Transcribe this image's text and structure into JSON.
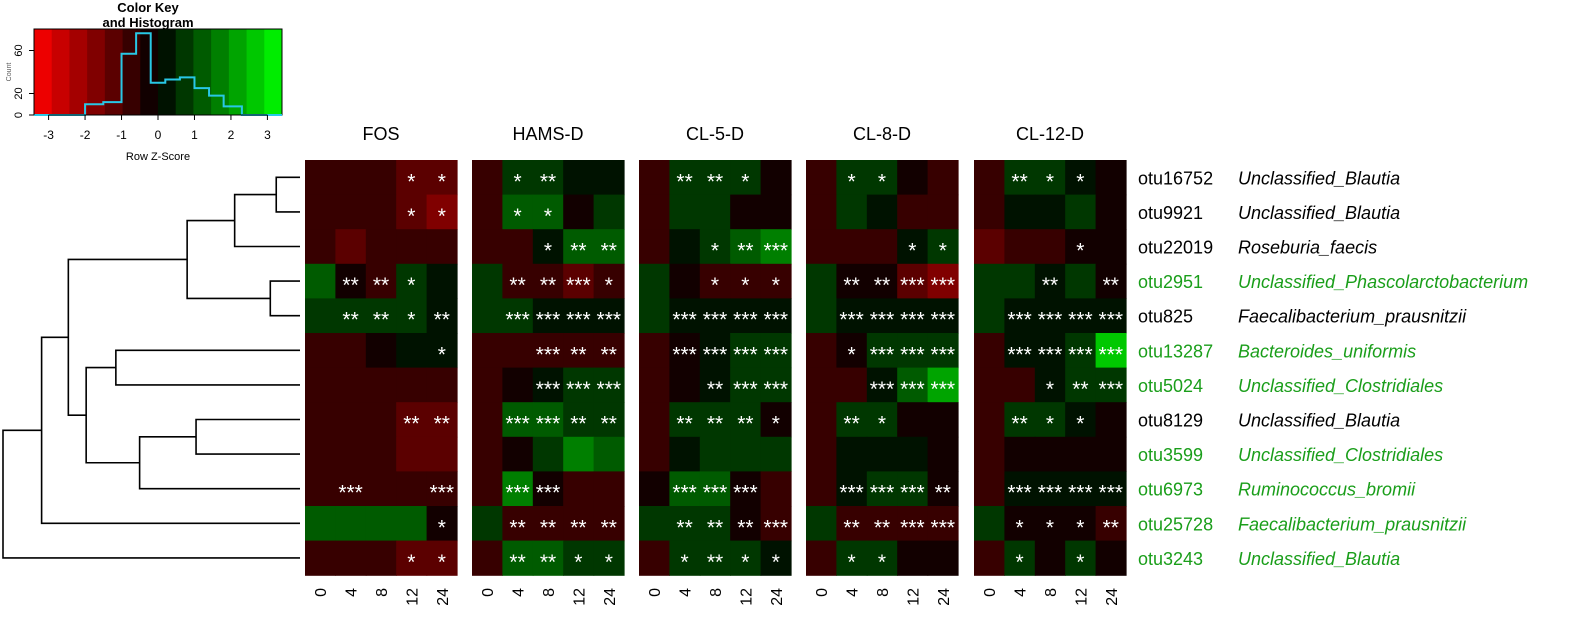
{
  "chart_data": {
    "type": "heatmap",
    "color_key": {
      "title_line1": "Color Key",
      "title_line2": "and Histogram",
      "xlabel": "Row Z-Score",
      "ylabel": "Count",
      "x_ticks": [
        "-3",
        "-2",
        "-1",
        "0",
        "1",
        "2",
        "3"
      ],
      "y_ticks": [
        "0",
        "20",
        "60"
      ],
      "xlim": [
        -3.4,
        3.4
      ],
      "ylim": [
        0,
        80
      ],
      "histogram": [
        {
          "x0": -3.4,
          "x1": -2.0,
          "count": 0
        },
        {
          "x0": -2.0,
          "x1": -1.5,
          "count": 10
        },
        {
          "x0": -1.5,
          "x1": -1.0,
          "count": 12
        },
        {
          "x0": -1.0,
          "x1": -0.6,
          "count": 57
        },
        {
          "x0": -0.6,
          "x1": -0.2,
          "count": 76
        },
        {
          "x0": -0.2,
          "x1": 0.2,
          "count": 30
        },
        {
          "x0": 0.2,
          "x1": 0.6,
          "count": 33
        },
        {
          "x0": 0.6,
          "x1": 1.0,
          "count": 35
        },
        {
          "x0": 1.0,
          "x1": 1.4,
          "count": 25
        },
        {
          "x0": 1.4,
          "x1": 1.8,
          "count": 18
        },
        {
          "x0": 1.8,
          "x1": 2.3,
          "count": 8
        },
        {
          "x0": 2.3,
          "x1": 3.4,
          "count": 0
        }
      ],
      "colors": {
        "low": "#ff0000",
        "mid": "#000000",
        "high": "#00ff00",
        "histogram": "#28c8e6"
      }
    },
    "panels": [
      "FOS",
      "HAMS-D",
      "CL-5-D",
      "CL-8-D",
      "CL-12-D"
    ],
    "timepoints": [
      "0",
      "4",
      "8",
      "12",
      "24"
    ],
    "rows": [
      {
        "otu": "otu16752",
        "taxon": "Unclassified_Blautia",
        "color": "#000000"
      },
      {
        "otu": "otu9921",
        "taxon": "Unclassified_Blautia",
        "color": "#000000"
      },
      {
        "otu": "otu22019",
        "taxon": "Roseburia_faecis",
        "color": "#000000"
      },
      {
        "otu": "otu2951",
        "taxon": "Unclassified_Phascolarctobacterium",
        "color": "#1a9e1a"
      },
      {
        "otu": "otu825",
        "taxon": "Faecalibacterium_prausnitzii",
        "color": "#000000"
      },
      {
        "otu": "otu13287",
        "taxon": "Bacteroides_uniformis",
        "color": "#1a9e1a"
      },
      {
        "otu": "otu5024",
        "taxon": "Unclassified_Clostridiales",
        "color": "#1a9e1a"
      },
      {
        "otu": "otu8129",
        "taxon": "Unclassified_Blautia",
        "color": "#000000"
      },
      {
        "otu": "otu3599",
        "taxon": "Unclassified_Clostridiales",
        "color": "#1a9e1a"
      },
      {
        "otu": "otu6973",
        "taxon": "Ruminococcus_bromii",
        "color": "#1a9e1a"
      },
      {
        "otu": "otu25728",
        "taxon": "Faecalibacterium_prausnitzii",
        "color": "#1a9e1a"
      },
      {
        "otu": "otu3243",
        "taxon": "Unclassified_Blautia",
        "color": "#1a9e1a"
      }
    ],
    "z_scores": {
      "FOS": [
        [
          -0.8,
          -0.9,
          -0.7,
          -1.2,
          -1.4
        ],
        [
          -0.9,
          -0.8,
          -0.8,
          -1.3,
          -1.6
        ],
        [
          -0.6,
          -1.1,
          -0.7,
          -0.7,
          -0.7
        ],
        [
          1.0,
          -0.1,
          -0.5,
          0.5,
          0.4
        ],
        [
          0.8,
          0.6,
          0.7,
          0.7,
          0.0
        ],
        [
          -0.8,
          -0.5,
          -0.1,
          0.3,
          0.4
        ],
        [
          -0.7,
          -0.7,
          -0.7,
          -0.7,
          -0.7
        ],
        [
          -0.7,
          -0.8,
          -0.8,
          -1.1,
          -1.3
        ],
        [
          -0.7,
          -0.8,
          -0.8,
          -1.0,
          -1.2
        ],
        [
          -0.6,
          -0.6,
          -0.6,
          -0.6,
          -0.8
        ],
        [
          1.2,
          1.2,
          1.2,
          1.0,
          -0.2
        ],
        [
          -0.8,
          -0.8,
          -0.8,
          -1.2,
          -1.4
        ]
      ],
      "HAMS-D": [
        [
          -0.7,
          0.8,
          0.7,
          0.3,
          0.3
        ],
        [
          -0.6,
          1.0,
          1.0,
          -0.1,
          0.5
        ],
        [
          -0.8,
          -0.5,
          0.4,
          1.0,
          1.3
        ],
        [
          0.5,
          -0.5,
          -0.6,
          -1.3,
          -0.8
        ],
        [
          0.6,
          0.5,
          0.4,
          0.4,
          0.4
        ],
        [
          -0.7,
          -0.7,
          -0.5,
          -0.5,
          -0.5
        ],
        [
          -0.6,
          -0.4,
          0.4,
          0.6,
          0.6
        ],
        [
          -0.6,
          1.0,
          1.3,
          0.8,
          0.8
        ],
        [
          -0.7,
          -0.1,
          0.6,
          1.6,
          1.2
        ],
        [
          -0.5,
          1.6,
          -0.2,
          -0.6,
          -0.5
        ],
        [
          0.7,
          -0.6,
          -0.6,
          -0.6,
          -0.6
        ],
        [
          -0.7,
          1.1,
          1.1,
          0.6,
          0.5
        ]
      ],
      "CL-5-D": [
        [
          -0.8,
          0.6,
          0.6,
          0.5,
          -0.2
        ],
        [
          -0.7,
          0.6,
          0.6,
          -0.1,
          -0.1
        ],
        [
          -0.7,
          0.3,
          0.9,
          1.2,
          1.9
        ],
        [
          0.8,
          -0.2,
          -0.6,
          -0.6,
          -0.7
        ],
        [
          0.5,
          0.4,
          0.4,
          0.4,
          0.4
        ],
        [
          -0.6,
          -0.4,
          0.3,
          0.5,
          0.5
        ],
        [
          -0.7,
          -0.3,
          0.2,
          0.8,
          0.9
        ],
        [
          -0.6,
          0.6,
          0.5,
          0.5,
          -0.1
        ],
        [
          -0.6,
          0.0,
          0.8,
          0.8,
          0.7
        ],
        [
          -0.4,
          1.3,
          1.4,
          -0.1,
          -0.5
        ],
        [
          0.8,
          0.6,
          0.6,
          -0.3,
          -0.8
        ],
        [
          -0.7,
          0.7,
          0.7,
          0.5,
          0.3
        ]
      ],
      "CL-8-D": [
        [
          -0.6,
          0.7,
          0.5,
          -0.4,
          -0.5
        ],
        [
          -0.6,
          0.5,
          0.4,
          -0.5,
          -0.5
        ],
        [
          -0.8,
          -0.6,
          -0.6,
          0.4,
          0.5
        ],
        [
          0.7,
          -0.1,
          -0.4,
          -1.1,
          -1.5
        ],
        [
          0.6,
          0.4,
          0.4,
          0.4,
          0.4
        ],
        [
          -0.6,
          -0.4,
          0.5,
          0.5,
          0.6
        ],
        [
          -0.6,
          -0.6,
          0.2,
          1.3,
          2.2
        ],
        [
          -0.6,
          0.8,
          0.5,
          -0.1,
          -0.3
        ],
        [
          -0.6,
          0.3,
          0.3,
          0.3,
          -0.3
        ],
        [
          -0.5,
          0.4,
          0.6,
          0.6,
          -0.4
        ],
        [
          0.8,
          -0.6,
          -0.6,
          -0.8,
          -0.9
        ],
        [
          -0.6,
          0.7,
          0.5,
          -0.1,
          -0.3
        ]
      ],
      "CL-12-D": [
        [
          -0.6,
          0.7,
          0.5,
          0.4,
          -0.2
        ],
        [
          -0.6,
          0.4,
          0.3,
          0.7,
          -0.3
        ],
        [
          -1.0,
          -0.7,
          -0.7,
          -0.1,
          -0.1
        ],
        [
          0.7,
          0.6,
          0.3,
          0.7,
          -0.2
        ],
        [
          0.6,
          0.4,
          0.4,
          0.4,
          0.4
        ],
        [
          -0.6,
          0.4,
          0.4,
          0.7,
          2.6
        ],
        [
          -0.6,
          -0.5,
          0.3,
          0.5,
          0.9
        ],
        [
          -0.5,
          0.5,
          0.5,
          0.3,
          -0.3
        ],
        [
          -0.5,
          -0.2,
          -0.1,
          -0.3,
          -0.3
        ],
        [
          -0.5,
          0.2,
          0.3,
          0.3,
          0.4
        ],
        [
          0.9,
          -0.1,
          -0.1,
          -0.4,
          -0.6
        ],
        [
          -0.6,
          0.6,
          -0.1,
          0.5,
          -0.3
        ]
      ]
    },
    "annotations": {
      "FOS": [
        [
          "",
          "",
          "",
          "*",
          "*"
        ],
        [
          "",
          "",
          "",
          "*",
          "*"
        ],
        [
          "",
          "",
          "",
          "",
          ""
        ],
        [
          "",
          "**",
          "**",
          "*",
          ""
        ],
        [
          "",
          "**",
          "**",
          "*",
          "**"
        ],
        [
          "",
          "",
          "",
          "",
          "*"
        ],
        [
          "",
          "",
          "",
          "",
          ""
        ],
        [
          "",
          "",
          "",
          "**",
          "**"
        ],
        [
          "",
          "",
          "",
          "",
          ""
        ],
        [
          "",
          "***",
          "",
          "",
          "***"
        ],
        [
          "",
          "",
          "",
          "",
          "*"
        ],
        [
          "",
          "",
          "",
          "*",
          "*"
        ]
      ],
      "HAMS-D": [
        [
          "",
          "*",
          "**",
          "",
          ""
        ],
        [
          "",
          "*",
          "*",
          "",
          ""
        ],
        [
          "",
          "",
          "*",
          "**",
          "**"
        ],
        [
          "",
          "**",
          "**",
          "***",
          "*"
        ],
        [
          "",
          "***",
          "***",
          "***",
          "***"
        ],
        [
          "",
          "",
          "***",
          "**",
          "**"
        ],
        [
          "",
          "",
          "***",
          "***",
          "***"
        ],
        [
          "",
          "***",
          "***",
          "**",
          "**"
        ],
        [
          "",
          "",
          "",
          "",
          ""
        ],
        [
          "",
          "***",
          "***",
          "",
          ""
        ],
        [
          "",
          "**",
          "**",
          "**",
          "**"
        ],
        [
          "",
          "**",
          "**",
          "*",
          "*"
        ]
      ],
      "CL-5-D": [
        [
          "",
          "**",
          "**",
          "*",
          ""
        ],
        [
          "",
          "",
          "",
          "",
          ""
        ],
        [
          "",
          "",
          "*",
          "**",
          "***"
        ],
        [
          "",
          "",
          "*",
          "*",
          "*"
        ],
        [
          "",
          "***",
          "***",
          "***",
          "***"
        ],
        [
          "",
          "***",
          "***",
          "***",
          "***"
        ],
        [
          "",
          "",
          "**",
          "***",
          "***"
        ],
        [
          "",
          "**",
          "**",
          "**",
          "*"
        ],
        [
          "",
          "",
          "",
          "",
          ""
        ],
        [
          "",
          "***",
          "***",
          "***",
          ""
        ],
        [
          "",
          "**",
          "**",
          "**",
          "***"
        ],
        [
          "",
          "*",
          "**",
          "*",
          "*"
        ]
      ],
      "CL-8-D": [
        [
          "",
          "*",
          "*",
          "",
          ""
        ],
        [
          "",
          "",
          "",
          "",
          ""
        ],
        [
          "",
          "",
          "",
          "*",
          "*"
        ],
        [
          "",
          "**",
          "**",
          "***",
          "***"
        ],
        [
          "",
          "***",
          "***",
          "***",
          "***"
        ],
        [
          "",
          "*",
          "***",
          "***",
          "***"
        ],
        [
          "",
          "",
          "***",
          "***",
          "***"
        ],
        [
          "",
          "**",
          "*",
          "",
          ""
        ],
        [
          "",
          "",
          "",
          "",
          ""
        ],
        [
          "",
          "***",
          "***",
          "***",
          "**"
        ],
        [
          "",
          "**",
          "**",
          "***",
          "***"
        ],
        [
          "",
          "*",
          "*",
          "",
          ""
        ]
      ],
      "CL-12-D": [
        [
          "",
          "**",
          "*",
          "*",
          ""
        ],
        [
          "",
          "",
          "",
          "",
          ""
        ],
        [
          "",
          "",
          "",
          "*",
          ""
        ],
        [
          "",
          "",
          "**",
          "",
          "**"
        ],
        [
          "",
          "***",
          "***",
          "***",
          "***"
        ],
        [
          "",
          "***",
          "***",
          "***",
          "***"
        ],
        [
          "",
          "",
          "*",
          "**",
          "***"
        ],
        [
          "",
          "**",
          "*",
          "*",
          ""
        ],
        [
          "",
          "",
          "",
          "",
          ""
        ],
        [
          "",
          "***",
          "***",
          "***",
          "***"
        ],
        [
          "",
          "*",
          "*",
          "*",
          "**"
        ],
        [
          "",
          "*",
          "",
          "*",
          ""
        ]
      ]
    },
    "dendrogram": {
      "merges": [
        [
          0,
          1
        ],
        [
          12,
          2
        ],
        [
          3,
          4
        ],
        [
          13,
          14
        ],
        [
          5,
          6
        ],
        [
          7,
          8
        ],
        [
          17,
          9
        ],
        [
          16,
          18
        ],
        [
          15,
          19
        ],
        [
          20,
          10
        ],
        [
          21,
          11
        ]
      ],
      "heights": [
        0.08,
        0.22,
        0.1,
        0.38,
        0.62,
        0.35,
        0.54,
        0.72,
        0.78,
        0.87,
        1.0
      ]
    }
  }
}
